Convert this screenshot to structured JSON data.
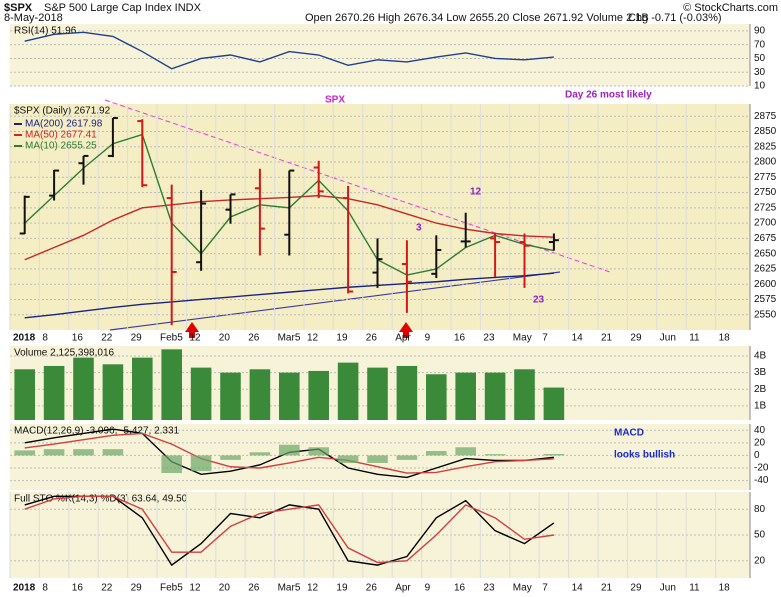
{
  "header": {
    "symbol": "$SPX",
    "name": "S&P 500 Large Cap Index INDX",
    "date": "8-May-2018",
    "quote": "Open 2670.26 High 2676.34 Low 2655.20 Close 2671.92 Volume 2.1B",
    "change": "Chg -0.71 (-0.03%)",
    "credit": "© StockCharts.com"
  },
  "chart_data": [
    {
      "type": "line",
      "title": "RSI(14) 51.96",
      "ylim": [
        10,
        100
      ],
      "yticks": [
        10,
        30,
        50,
        70,
        90
      ],
      "grid": true,
      "series": [
        {
          "name": "RSI(14)",
          "color": "#1f3f8f",
          "values": [
            75,
            85,
            88,
            82,
            60,
            35,
            50,
            55,
            45,
            60,
            55,
            40,
            48,
            45,
            52,
            58,
            50,
            48,
            52,
            null,
            null,
            null,
            null,
            null,
            null
          ]
        }
      ]
    },
    {
      "type": "ohlc",
      "title": "$SPX (Daily) 2671.92",
      "ylim": [
        2525,
        2895
      ],
      "yticks": [
        2550,
        2575,
        2600,
        2625,
        2650,
        2675,
        2700,
        2725,
        2750,
        2775,
        2800,
        2825,
        2850,
        2875
      ],
      "grid": true,
      "categories": [
        "2018",
        "8",
        "16",
        "22",
        "29",
        "Feb5",
        "12",
        "20",
        "26",
        "Mar5",
        "12",
        "19",
        "26",
        "Apr",
        "9",
        "16",
        "23",
        "May",
        "7",
        "14",
        "21",
        "29",
        "Jun",
        "11",
        "18"
      ],
      "up_color": "#111111",
      "down_color": "#d01818",
      "open": [
        2683,
        2745,
        2798,
        2810,
        2867,
        2741,
        2636,
        2722,
        2757,
        2681,
        2791,
        2741,
        2619,
        2633,
        2617,
        2670,
        2675,
        2669,
        2669,
        null,
        null,
        null,
        null,
        null,
        null
      ],
      "high": [
        2745,
        2787,
        2810,
        2872,
        2870,
        2763,
        2754,
        2747,
        2789,
        2786,
        2802,
        2761,
        2675,
        2672,
        2680,
        2717,
        2683,
        2683,
        2683,
        null,
        null,
        null,
        null,
        null,
        null
      ],
      "low": [
        2682,
        2737,
        2763,
        2808,
        2759,
        2533,
        2622,
        2699,
        2647,
        2647,
        2741,
        2585,
        2594,
        2553,
        2610,
        2660,
        2612,
        2594,
        2655,
        null,
        null,
        null,
        null,
        null,
        null
      ],
      "close": [
        2743,
        2786,
        2810,
        2872,
        2762,
        2620,
        2732,
        2747,
        2691,
        2786,
        2752,
        2588,
        2641,
        2604,
        2656,
        2670,
        2669,
        2663,
        2672,
        null,
        null,
        null,
        null,
        null,
        null
      ],
      "series": [
        {
          "name": "MA(200) 2617.98",
          "color": "#1a237e",
          "values": [
            2545,
            2550,
            2556,
            2562,
            2567,
            2571,
            2575,
            2579,
            2583,
            2587,
            2591,
            2595,
            2598,
            2601,
            2604,
            2608,
            2611,
            2614,
            2618,
            null,
            null,
            null,
            null,
            null,
            null
          ]
        },
        {
          "name": "MA(50) 2677.41",
          "color": "#c62828",
          "values": [
            2640,
            2660,
            2680,
            2705,
            2725,
            2730,
            2735,
            2738,
            2740,
            2742,
            2745,
            2740,
            2730,
            2715,
            2700,
            2690,
            2683,
            2679,
            2677,
            null,
            null,
            null,
            null,
            null,
            null
          ]
        },
        {
          "name": "MA(10) 2655.25",
          "color": "#2e7d32",
          "values": [
            2700,
            2745,
            2790,
            2830,
            2845,
            2700,
            2650,
            2710,
            2730,
            2725,
            2770,
            2720,
            2640,
            2615,
            2625,
            2660,
            2680,
            2665,
            2655,
            null,
            null,
            null,
            null,
            null,
            null
          ]
        }
      ],
      "annotations": [
        "SPX",
        "Day 26 most likely",
        "3",
        "12",
        "23"
      ]
    },
    {
      "type": "bar",
      "title": "Volume 2,125,398,016",
      "color": "#3a8a3a",
      "ylim": [
        150000000,
        4600000000
      ],
      "yticks": [
        {
          "value": 1000000000,
          "label": "1B"
        },
        {
          "value": 2000000000,
          "label": "2B"
        },
        {
          "value": 3000000000,
          "label": "3B"
        },
        {
          "value": 4000000000,
          "label": "4B"
        }
      ],
      "grid": true,
      "values": [
        3200000000,
        3400000000,
        3900000000,
        3500000000,
        3900000000,
        4400000000,
        3300000000,
        3000000000,
        3200000000,
        3000000000,
        3100000000,
        3600000000,
        3300000000,
        3400000000,
        2900000000,
        3000000000,
        3000000000,
        3200000000,
        2100000000,
        null,
        null,
        null,
        null,
        null,
        null
      ]
    },
    {
      "type": "line",
      "title": "MACD(12,26,9) -3.096, -5.427, 2.331",
      "ylim": [
        -55,
        50
      ],
      "yticks": [
        -40,
        -20,
        0,
        20,
        40
      ],
      "grid": true,
      "series": [
        {
          "name": "MACD",
          "color": "#000000",
          "values": [
            20,
            28,
            35,
            42,
            35,
            -10,
            -30,
            -25,
            -15,
            5,
            10,
            -20,
            -30,
            -35,
            -20,
            -5,
            -8,
            -8,
            -3,
            null,
            null,
            null,
            null,
            null,
            null
          ]
        },
        {
          "name": "Signal",
          "color": "#d04040",
          "values": [
            12,
            18,
            25,
            32,
            35,
            18,
            -5,
            -18,
            -20,
            -12,
            -3,
            -8,
            -18,
            -28,
            -27,
            -18,
            -10,
            -8,
            -5.4,
            null,
            null,
            null,
            null,
            null,
            null
          ]
        },
        {
          "name": "Histogram",
          "color": "#6aa56a",
          "style": "bar",
          "values": [
            8,
            10,
            10,
            10,
            0,
            -28,
            -25,
            -7,
            5,
            17,
            13,
            -12,
            -12,
            -7,
            7,
            13,
            2,
            0,
            2.3,
            null,
            null,
            null,
            null,
            null,
            null
          ]
        }
      ],
      "annotations": [
        "MACD",
        "looks bullish"
      ]
    },
    {
      "type": "line",
      "title": "Full STO %K(14,3) %D(3) 63.64, 49.50",
      "ylim": [
        0,
        100
      ],
      "yticks": [
        20,
        50,
        80
      ],
      "grid": true,
      "categories": [
        "2018",
        "8",
        "16",
        "22",
        "29",
        "Feb5",
        "12",
        "20",
        "26",
        "Mar5",
        "12",
        "19",
        "26",
        "Apr",
        "9",
        "16",
        "23",
        "May",
        "7",
        "14",
        "21",
        "29",
        "Jun",
        "11",
        "18"
      ],
      "series": [
        {
          "name": "%K",
          "color": "#000000",
          "values": [
            85,
            95,
            95,
            95,
            70,
            15,
            40,
            75,
            70,
            85,
            80,
            20,
            15,
            25,
            70,
            90,
            55,
            40,
            64,
            null,
            null,
            null,
            null,
            null,
            null
          ]
        },
        {
          "name": "%D",
          "color": "#d04040",
          "values": [
            80,
            92,
            95,
            95,
            80,
            30,
            30,
            60,
            75,
            80,
            85,
            35,
            18,
            20,
            50,
            85,
            70,
            45,
            50,
            null,
            null,
            null,
            null,
            null,
            null
          ]
        }
      ]
    }
  ]
}
